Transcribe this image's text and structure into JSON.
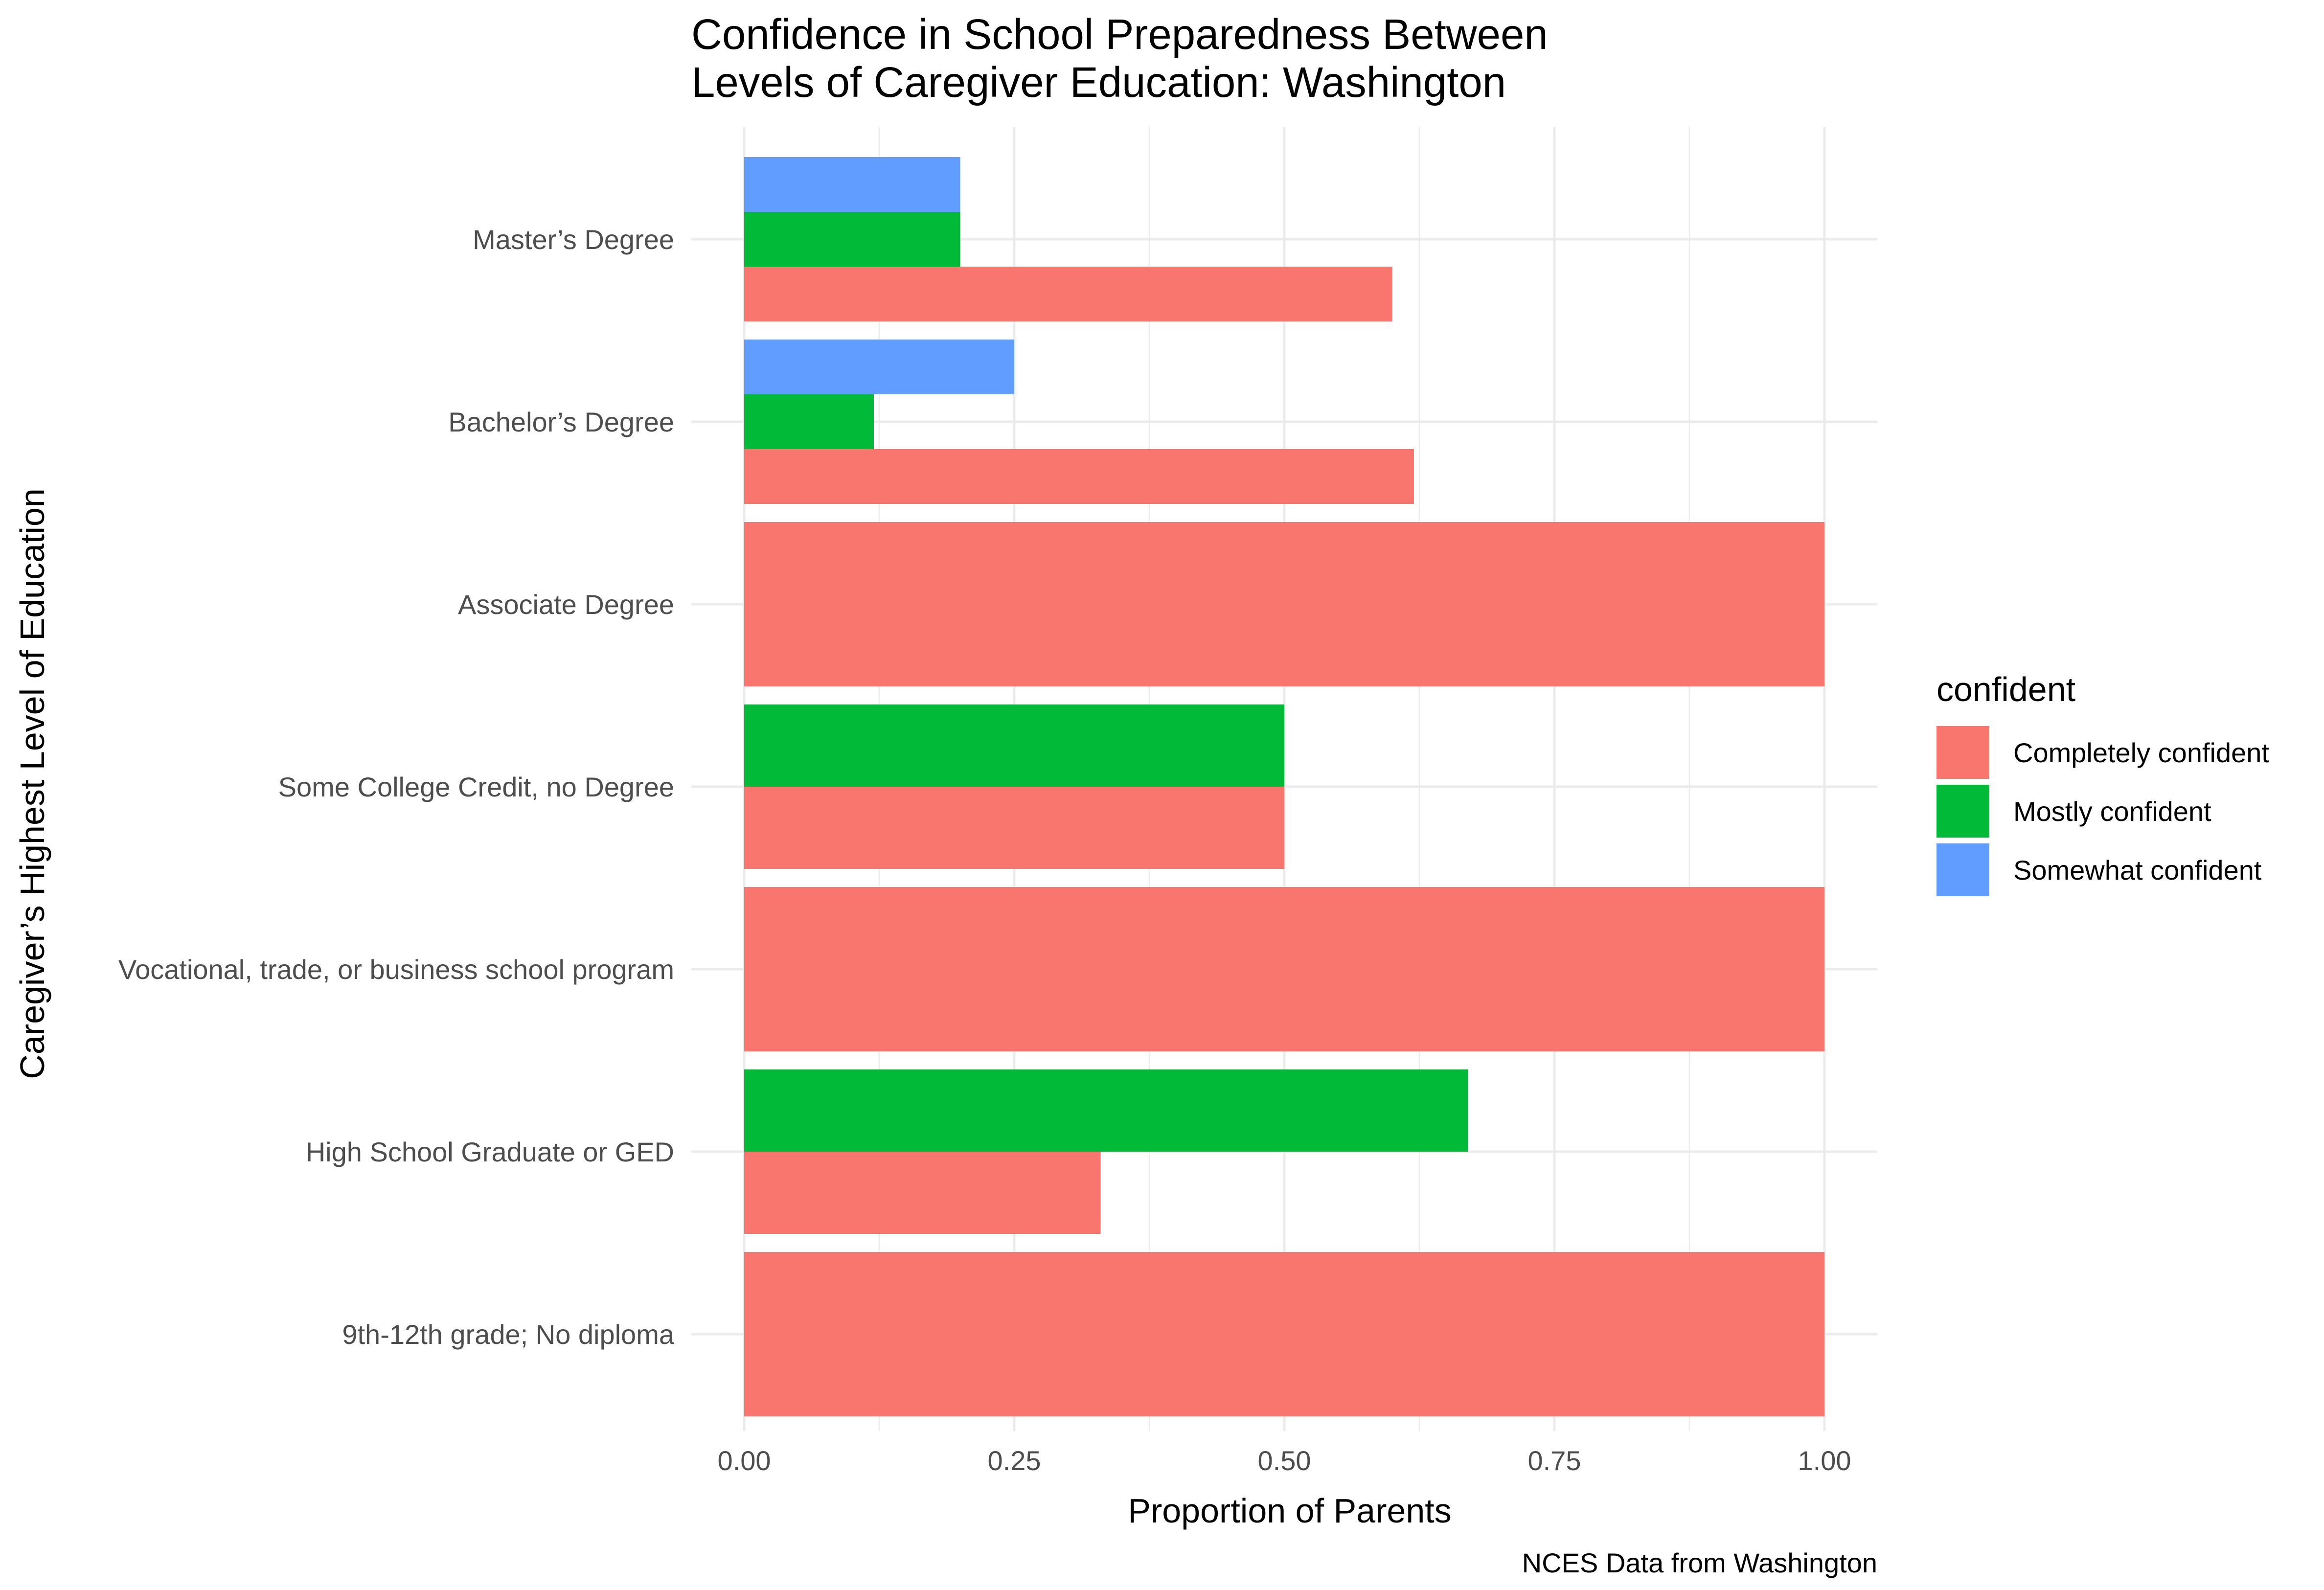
{
  "chart_data": {
    "type": "bar",
    "orientation": "horizontal",
    "title_lines": [
      "Confidence in School Preparedness Between",
      "Levels of Caregiver Education: Washington"
    ],
    "xlabel": "Proportion of Parents",
    "ylabel": "Caregiver’s Highest Level of Education",
    "caption": "NCES Data from Washington",
    "xlim": [
      0,
      1
    ],
    "x_ticks": [
      "0.00",
      "0.25",
      "0.50",
      "0.75",
      "1.00"
    ],
    "grid": true,
    "categories": [
      "Master’s Degree",
      "Bachelor’s Degree",
      "Associate Degree",
      "Some College Credit, no Degree",
      "Vocational, trade, or business school program",
      "High School Graduate or GED",
      "9th-12th grade; No diploma"
    ],
    "legend": {
      "title": "confident",
      "position": "right",
      "entries": [
        "Completely confident",
        "Mostly confident",
        "Somewhat confident"
      ]
    },
    "series": [
      {
        "name": "Completely confident",
        "color": "#F8766D",
        "values": [
          0.6,
          0.62,
          1.0,
          0.5,
          1.0,
          0.33,
          1.0
        ]
      },
      {
        "name": "Mostly confident",
        "color": "#00BA38",
        "values": [
          0.2,
          0.12,
          null,
          0.5,
          null,
          0.67,
          null
        ]
      },
      {
        "name": "Somewhat confident",
        "color": "#619CFF",
        "values": [
          0.2,
          0.25,
          null,
          null,
          null,
          null,
          null
        ]
      }
    ]
  }
}
